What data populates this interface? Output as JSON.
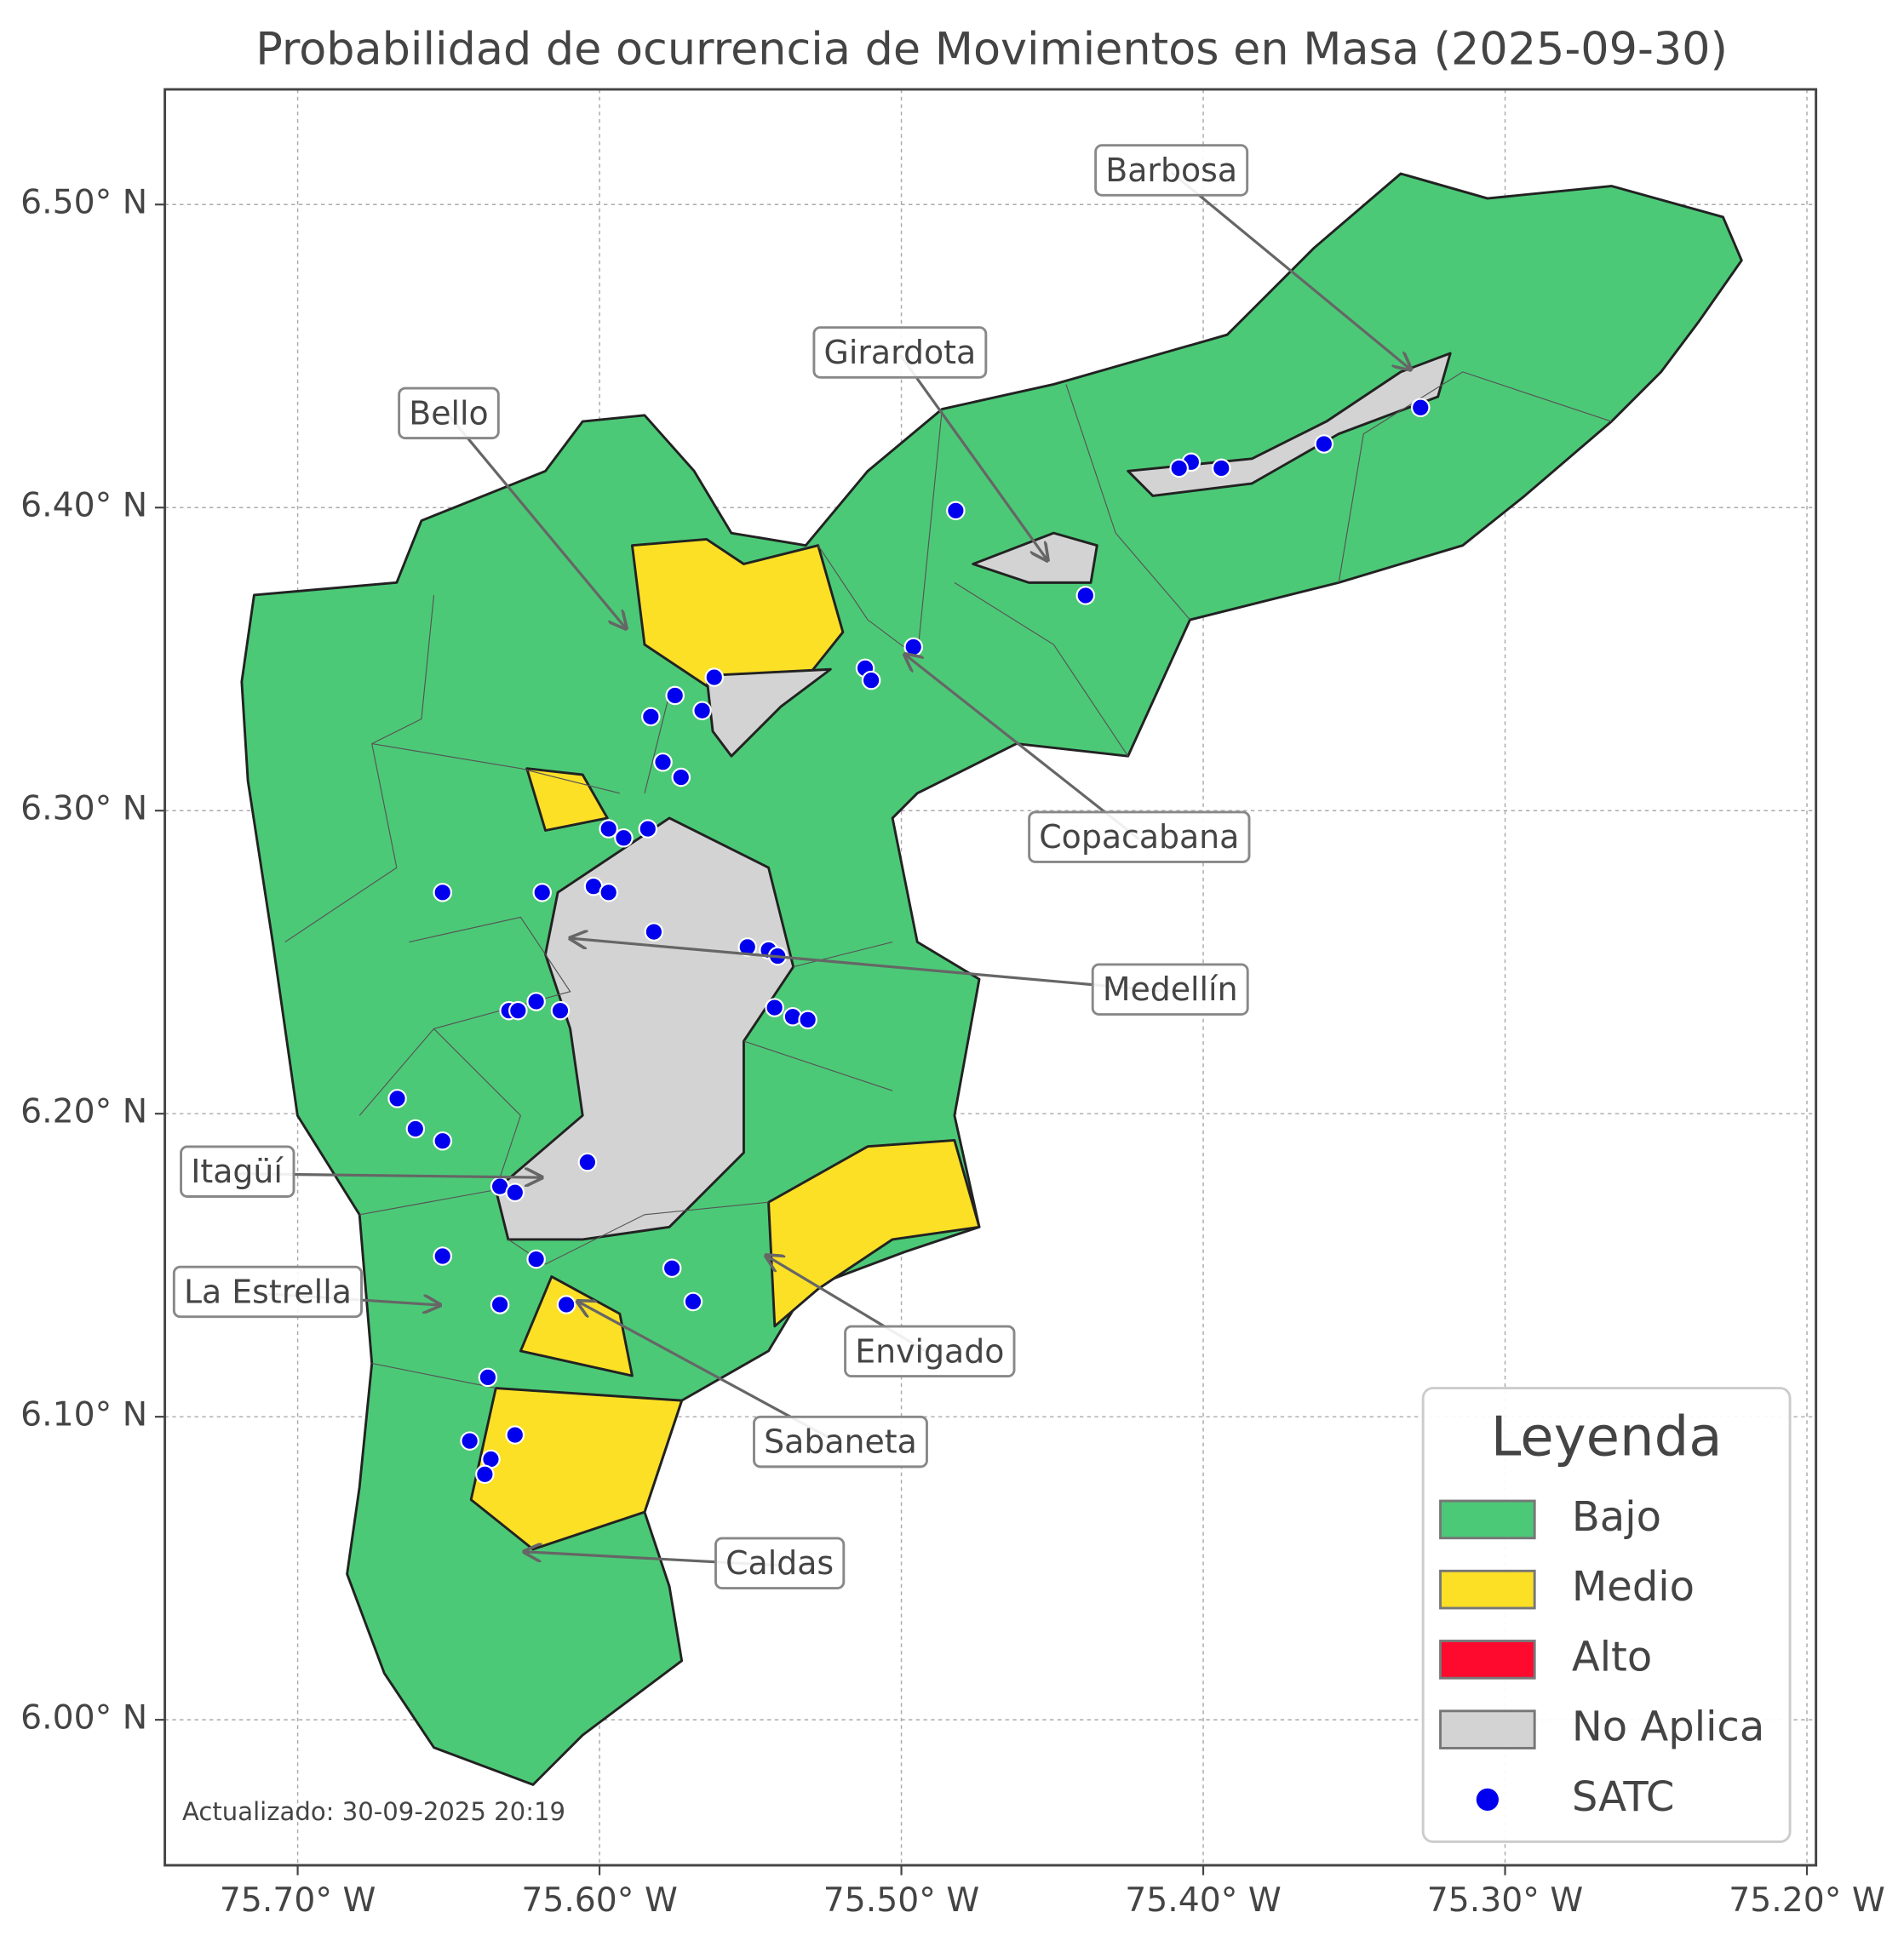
{
  "title": "Probabilidad de ocurrencia de Movimientos en Masa (2025-09-30)",
  "xlim": [
    -75.744,
    -75.197
  ],
  "ylim": [
    5.952,
    6.538
  ],
  "xticks": [
    {
      "value": -75.7,
      "label": "75.70° W"
    },
    {
      "value": -75.6,
      "label": "75.60° W"
    },
    {
      "value": -75.5,
      "label": "75.50° W"
    },
    {
      "value": -75.4,
      "label": "75.40° W"
    },
    {
      "value": -75.3,
      "label": "75.30° W"
    },
    {
      "value": -75.2,
      "label": "75.20° W"
    }
  ],
  "yticks": [
    {
      "value": 6.0,
      "label": "6.00° N"
    },
    {
      "value": 6.1,
      "label": "6.10° N"
    },
    {
      "value": 6.2,
      "label": "6.20° N"
    },
    {
      "value": 6.3,
      "label": "6.30° N"
    },
    {
      "value": 6.4,
      "label": "6.40° N"
    },
    {
      "value": 6.5,
      "label": "6.50° N"
    }
  ],
  "grid": true,
  "annotations": [
    "Barbosa",
    "Girardota",
    "Bello",
    "Copacabana",
    "Medellín",
    "Itagüí",
    "La Estrella",
    "Envigado",
    "Sabaneta",
    "Caldas"
  ],
  "legend": {
    "title": "Leyenda",
    "position": "lower right",
    "items": [
      {
        "label": "Bajo",
        "color": "#4cc977"
      },
      {
        "label": "Medio",
        "color": "#fce026"
      },
      {
        "label": "Alto",
        "color": "#ff0a2f"
      },
      {
        "label": "No Aplica",
        "color": "#d3d3d3"
      },
      {
        "label": "SATC",
        "color": "#0000ee"
      }
    ]
  },
  "satc": {
    "lon": [
      -75.328,
      -75.36,
      -75.394,
      -75.404,
      -75.408,
      -75.482,
      -75.439,
      -75.496,
      -75.512,
      -75.51,
      -75.562,
      -75.575,
      -75.566,
      -75.583,
      -75.579,
      -75.573,
      -75.597,
      -75.592,
      -75.584,
      -75.652,
      -75.619,
      -75.602,
      -75.597,
      -75.582,
      -75.551,
      -75.544,
      -75.541,
      -75.542,
      -75.536,
      -75.531,
      -75.63,
      -75.627,
      -75.621,
      -75.613,
      -75.667,
      -75.661,
      -75.652,
      -75.604,
      -75.633,
      -75.628,
      -75.652,
      -75.621,
      -75.576,
      -75.569,
      -75.633,
      -75.611,
      -75.637,
      -75.643,
      -75.628,
      -75.636,
      -75.638
    ],
    "lat": [
      6.433,
      6.421,
      6.413,
      6.415,
      6.413,
      6.399,
      6.371,
      6.354,
      6.347,
      6.343,
      6.344,
      6.338,
      6.333,
      6.331,
      6.316,
      6.311,
      6.294,
      6.291,
      6.294,
      6.273,
      6.273,
      6.275,
      6.273,
      6.26,
      6.255,
      6.254,
      6.252,
      6.235,
      6.232,
      6.231,
      6.234,
      6.234,
      6.237,
      6.234,
      6.205,
      6.195,
      6.191,
      6.184,
      6.176,
      6.174,
      6.153,
      6.152,
      6.149,
      6.138,
      6.137,
      6.137,
      6.113,
      6.092,
      6.094,
      6.086,
      6.081
    ]
  },
  "footer": "Actualizado: 30-09-2025 20:19"
}
